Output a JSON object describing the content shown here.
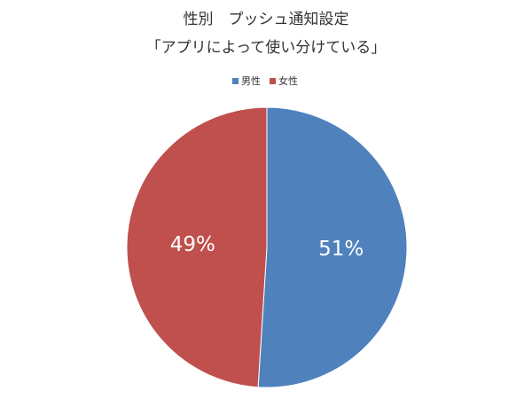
{
  "chart_data": {
    "type": "pie",
    "title": "性別　プッシュ通知設定",
    "subtitle": "「アプリによって使い分けている」",
    "categories": [
      "男性",
      "女性"
    ],
    "values": [
      51,
      49
    ],
    "value_labels": [
      "51%",
      "49%"
    ],
    "colors": [
      "#4f81bd",
      "#c0504d"
    ],
    "legend": "top"
  }
}
